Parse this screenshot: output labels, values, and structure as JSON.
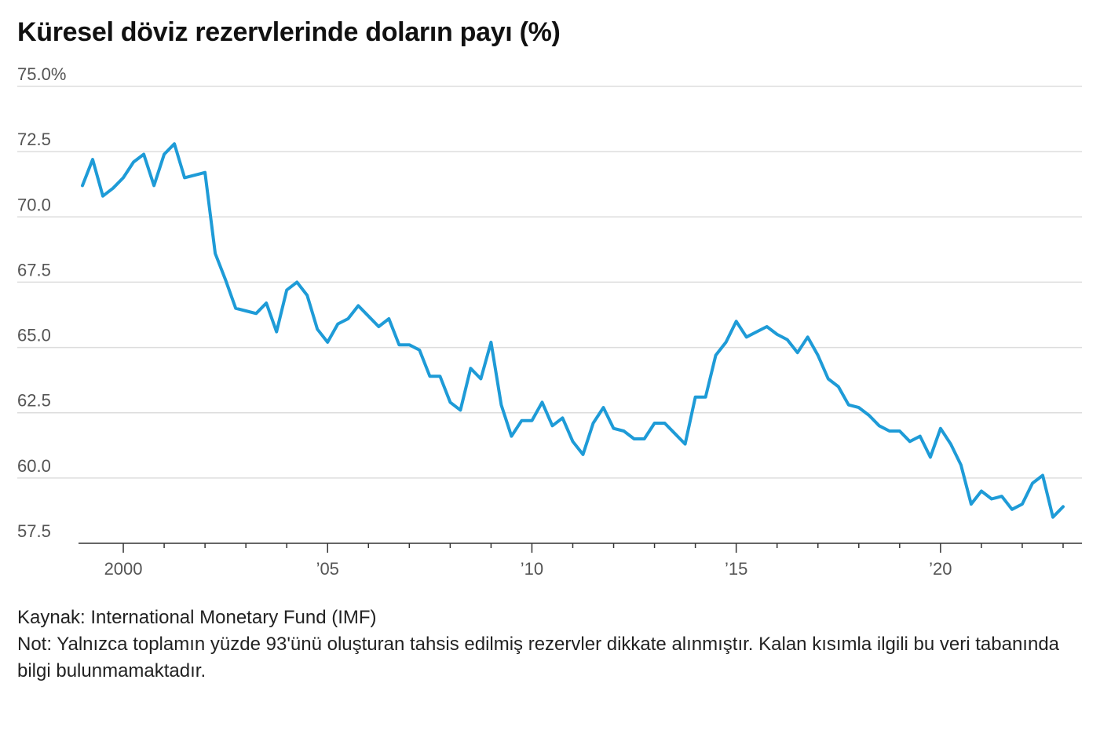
{
  "title": "Küresel döviz rezervlerinde doların payı (%)",
  "source": "Kaynak: International Monetary Fund (IMF)",
  "note": "Not: Yalnızca toplamın yüzde 93'ünü oluşturan tahsis edilmiş rezervler dikkate alınmıştır. Kalan kısımla ilgili bu veri tabanında bilgi bulunmamaktadır.",
  "colors": {
    "line": "#1e9bd7",
    "grid": "#dddddd",
    "axis": "#333333",
    "tick_text": "#555555"
  },
  "chart_data": {
    "type": "line",
    "title": "Küresel döviz rezervlerinde doların payı (%)",
    "xlabel": "",
    "ylabel": "",
    "grid": "horizontal",
    "legend": "none",
    "ylim": [
      57.5,
      75.0
    ],
    "xlim": [
      1999.0,
      2023.25
    ],
    "y_ticks": [
      57.5,
      60.0,
      62.5,
      65.0,
      67.5,
      70.0,
      72.5,
      75.0
    ],
    "y_tick_labels": [
      "57.5",
      "60.0",
      "62.5",
      "65.0",
      "67.5",
      "70.0",
      "72.5",
      "75.0%"
    ],
    "x_tick_positions": [
      2000,
      2005,
      2010,
      2015,
      2020
    ],
    "x_tick_labels": [
      "2000",
      "’05",
      "’10",
      "’15",
      "’20"
    ],
    "x_minor_ticks": [
      2000,
      2001,
      2002,
      2003,
      2004,
      2005,
      2006,
      2007,
      2008,
      2009,
      2010,
      2011,
      2012,
      2013,
      2014,
      2015,
      2016,
      2017,
      2018,
      2019,
      2020,
      2021,
      2022,
      2023
    ],
    "series": [
      {
        "x": [
          1999.0,
          1999.25,
          1999.5,
          1999.75,
          2000.0,
          2000.25,
          2000.5,
          2000.75,
          2001.0,
          2001.25,
          2001.5,
          2001.75,
          2002.0,
          2002.25,
          2002.5,
          2002.75,
          2003.0,
          2003.25,
          2003.5,
          2003.75,
          2004.0,
          2004.25,
          2004.5,
          2004.75,
          2005.0,
          2005.25,
          2005.5,
          2005.75,
          2006.0,
          2006.25,
          2006.5,
          2006.75,
          2007.0,
          2007.25,
          2007.5,
          2007.75,
          2008.0,
          2008.25,
          2008.5,
          2008.75,
          2009.0,
          2009.25,
          2009.5,
          2009.75,
          2010.0,
          2010.25,
          2010.5,
          2010.75,
          2011.0,
          2011.25,
          2011.5,
          2011.75,
          2012.0,
          2012.25,
          2012.5,
          2012.75,
          2013.0,
          2013.25,
          2013.5,
          2013.75,
          2014.0,
          2014.25,
          2014.5,
          2014.75,
          2015.0,
          2015.25,
          2015.5,
          2015.75,
          2016.0,
          2016.25,
          2016.5,
          2016.75,
          2017.0,
          2017.25,
          2017.5,
          2017.75,
          2018.0,
          2018.25,
          2018.5,
          2018.75,
          2019.0,
          2019.25,
          2019.5,
          2019.75,
          2020.0,
          2020.25,
          2020.5,
          2020.75,
          2021.0,
          2021.25,
          2021.5,
          2021.75,
          2022.0,
          2022.25,
          2022.5,
          2022.75,
          2023.0
        ],
        "values": [
          71.2,
          72.2,
          70.8,
          71.1,
          71.5,
          72.1,
          72.4,
          71.2,
          72.4,
          72.8,
          71.5,
          71.6,
          71.7,
          68.6,
          67.6,
          66.5,
          66.4,
          66.3,
          66.7,
          65.6,
          67.2,
          67.5,
          67.0,
          65.7,
          65.2,
          65.9,
          66.1,
          66.6,
          66.2,
          65.8,
          66.1,
          65.1,
          65.1,
          64.9,
          63.9,
          63.9,
          62.9,
          62.6,
          64.2,
          63.8,
          65.2,
          62.8,
          61.6,
          62.2,
          62.2,
          62.9,
          62.0,
          62.3,
          61.4,
          60.9,
          62.1,
          62.7,
          61.9,
          61.8,
          61.5,
          61.5,
          62.1,
          62.1,
          61.7,
          61.3,
          63.1,
          63.1,
          64.7,
          65.2,
          66.0,
          65.4,
          65.6,
          65.8,
          65.5,
          65.3,
          64.8,
          65.4,
          64.7,
          63.8,
          63.5,
          62.8,
          62.7,
          62.4,
          62.0,
          61.8,
          61.8,
          61.4,
          61.6,
          60.8,
          61.9,
          61.3,
          60.5,
          59.0,
          59.5,
          59.2,
          59.3,
          58.8,
          59.0,
          59.8,
          60.1,
          58.5,
          58.9
        ]
      }
    ]
  }
}
